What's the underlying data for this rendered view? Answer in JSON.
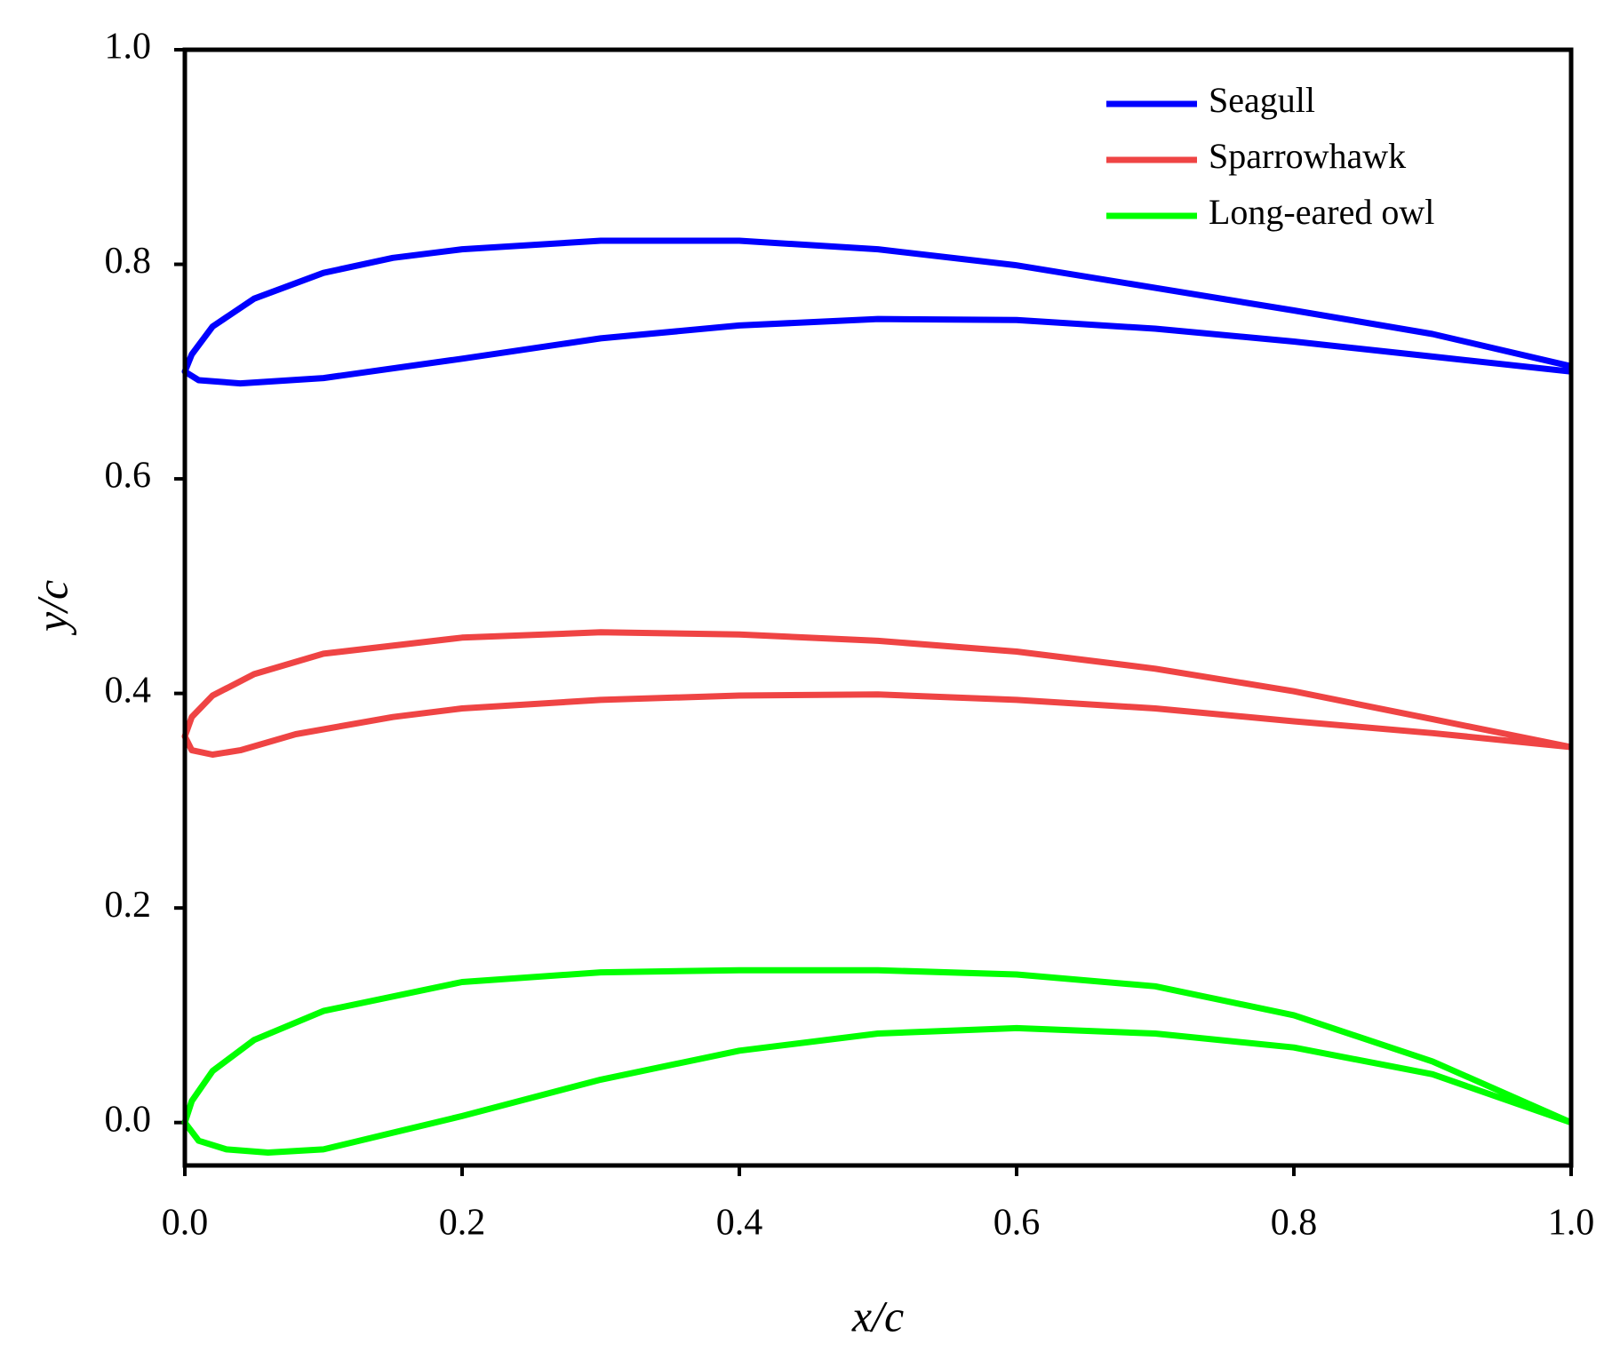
{
  "chart_data": {
    "type": "line",
    "xlabel": "x/c",
    "ylabel": "y/c",
    "xlim": [
      0,
      1
    ],
    "ylim": [
      -0.04,
      1.0
    ],
    "xticks": [
      {
        "value": 0,
        "label": "0.0"
      },
      0.2,
      0.4,
      0.6,
      0.8,
      {
        "value": 1,
        "label": "1.0"
      }
    ],
    "yticks": [
      {
        "value": 0,
        "label": "0.0"
      },
      0.2,
      0.4,
      0.6,
      0.8,
      {
        "value": 1,
        "label": "1.0"
      }
    ],
    "legend": "upper right",
    "series": [
      {
        "name": "Seagull",
        "color": "#0000ff",
        "x": [
          1.0,
          0.9,
          0.8,
          0.7,
          0.6,
          0.5,
          0.4,
          0.3,
          0.2,
          0.15,
          0.1,
          0.05,
          0.02,
          0.005,
          0,
          0.01,
          0.04,
          0.1,
          0.2,
          0.3,
          0.4,
          0.5,
          0.6,
          0.7,
          0.8,
          0.9,
          1.0
        ],
        "values": [
          0.705,
          0.735,
          0.757,
          0.778,
          0.799,
          0.814,
          0.822,
          0.822,
          0.814,
          0.806,
          0.792,
          0.768,
          0.742,
          0.716,
          0.7,
          0.692,
          0.689,
          0.694,
          0.712,
          0.731,
          0.743,
          0.749,
          0.748,
          0.74,
          0.728,
          0.714,
          0.7
        ]
      },
      {
        "name": "Sparrowhawk",
        "color": "#ef4444",
        "x": [
          1,
          0.9,
          0.8,
          0.7,
          0.6,
          0.5,
          0.4,
          0.3,
          0.2,
          0.1,
          0.05,
          0.02,
          0.005,
          0,
          0.005,
          0.02,
          0.04,
          0.08,
          0.15,
          0.2,
          0.3,
          0.4,
          0.5,
          0.6,
          0.7,
          0.8,
          0.9,
          1
        ],
        "values": [
          0.35,
          0.376,
          0.402,
          0.423,
          0.439,
          0.449,
          0.455,
          0.457,
          0.452,
          0.437,
          0.418,
          0.398,
          0.378,
          0.36,
          0.347,
          0.343,
          0.347,
          0.362,
          0.378,
          0.386,
          0.394,
          0.398,
          0.399,
          0.394,
          0.386,
          0.374,
          0.363,
          0.35
        ]
      },
      {
        "name": "Long-eared owl",
        "color": "#00ff00",
        "x": [
          1,
          0.9,
          0.8,
          0.7,
          0.6,
          0.5,
          0.4,
          0.3,
          0.2,
          0.1,
          0.05,
          0.02,
          0.005,
          0,
          0.01,
          0.03,
          0.06,
          0.1,
          0.2,
          0.3,
          0.4,
          0.5,
          0.6,
          0.7,
          0.8,
          0.9,
          1
        ],
        "values": [
          0,
          0.057,
          0.1,
          0.127,
          0.138,
          0.142,
          0.142,
          0.14,
          0.131,
          0.104,
          0.077,
          0.048,
          0.02,
          0,
          -0.017,
          -0.025,
          -0.028,
          -0.025,
          0.006,
          0.04,
          0.067,
          0.083,
          0.088,
          0.083,
          0.07,
          0.045,
          0
        ]
      }
    ]
  }
}
